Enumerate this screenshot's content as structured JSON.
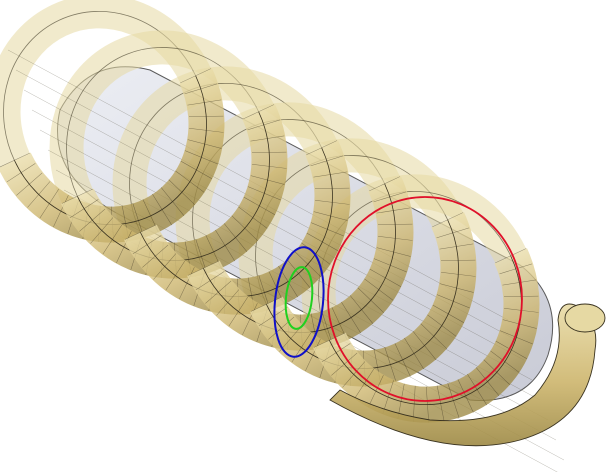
{
  "scene": {
    "coil_turns": 6,
    "colors": {
      "background": "#ffffff",
      "coil_fill": "#c8b36a",
      "coil_fill_light": "#e6d9a3",
      "coil_fill_dark": "#8c7a3a",
      "coil_line": "#3a3320",
      "core_fill": "#dfe0e8",
      "core_line": "#5a5a5a",
      "circle_large": "#e0102a",
      "circle_medium": "#1010c8",
      "circle_small": "#20d020"
    }
  }
}
